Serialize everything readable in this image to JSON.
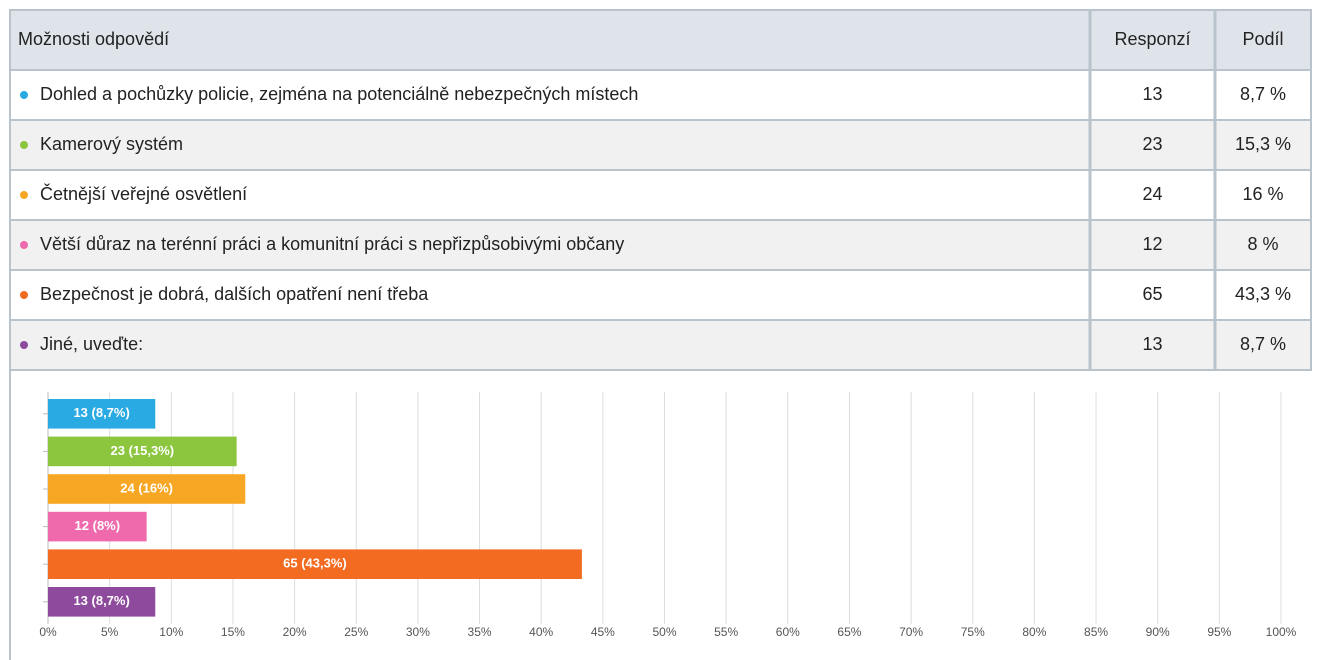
{
  "table": {
    "header": [
      "Možnosti odpovědí",
      "Responzí",
      "Podíl"
    ],
    "rows": [
      [
        "Dohled a pochůzky policie, zejména na potenciálně nebezpečných místech",
        "13",
        "8,7 %"
      ],
      [
        "Kamerový systém",
        "23",
        "15,3 %"
      ],
      [
        "Četnější veřejné osvětlení",
        "24",
        "16 %"
      ],
      [
        "Větší důraz na terénní práci a komunitní práci s nepřizpůsobivými občany",
        "12",
        "8 %"
      ],
      [
        "Bezpečnost je dobrá, dalších opatření není třeba",
        "65",
        "43,3 %"
      ],
      [
        "Jiné, uveďte:",
        "13",
        "8,7 %"
      ]
    ]
  },
  "chart_data": {
    "type": "barh",
    "values": [
      8.7,
      15.3,
      16,
      8,
      43.3,
      8.7
    ],
    "value_labels": [
      "13 (8,7%)",
      "23 (15,3%)",
      "24 (16%)",
      "12 (8%)",
      "65 (43,3%)",
      "13 (8,7%)"
    ],
    "colors": [
      "#2aaae2",
      "#8cc63f",
      "#f8a724",
      "#ee6aad",
      "#f36b21",
      "#8e4a9c"
    ],
    "xlim": [
      0,
      100
    ],
    "xticks": [
      {
        "value": 0,
        "label": "0%"
      },
      {
        "value": 5,
        "label": "5%"
      },
      {
        "value": 10,
        "label": "10%"
      },
      {
        "value": 15,
        "label": "15%"
      },
      {
        "value": 20,
        "label": "20%"
      },
      {
        "value": 25,
        "label": "25%"
      },
      {
        "value": 30,
        "label": "30%"
      },
      {
        "value": 35,
        "label": "35%"
      },
      {
        "value": 40,
        "label": "40%"
      },
      {
        "value": 45,
        "label": "45%"
      },
      {
        "value": 50,
        "label": "50%"
      },
      {
        "value": 55,
        "label": "55%"
      },
      {
        "value": 60,
        "label": "60%"
      },
      {
        "value": 65,
        "label": "65%"
      },
      {
        "value": 70,
        "label": "70%"
      },
      {
        "value": 75,
        "label": "75%"
      },
      {
        "value": 80,
        "label": "80%"
      },
      {
        "value": 85,
        "label": "85%"
      },
      {
        "value": 90,
        "label": "90%"
      },
      {
        "value": 95,
        "label": "95%"
      },
      {
        "value": 100,
        "label": "100%"
      }
    ],
    "grid": true
  }
}
